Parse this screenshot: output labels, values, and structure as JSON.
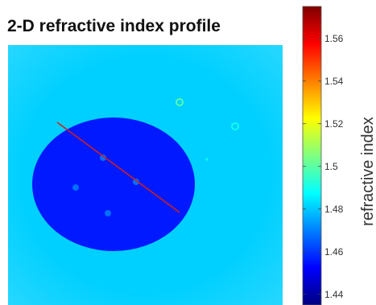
{
  "chart_data": {
    "type": "heatmap",
    "title": "2-D refractive index profile",
    "colorbar": {
      "label": "refractive index",
      "range": [
        1.435,
        1.575
      ],
      "ticks": [
        1.44,
        1.46,
        1.48,
        1.5,
        1.52,
        1.54,
        1.56
      ],
      "tick_labels": [
        "1.44",
        "1.46",
        "1.48",
        "1.5",
        "1.52",
        "1.54",
        "1.56"
      ],
      "colormap": "jet"
    },
    "background_value": 1.481,
    "regions": [
      {
        "shape": "disk",
        "value": 1.456
      },
      {
        "shape": "dot",
        "value": 1.47
      },
      {
        "shape": "dot",
        "value": 1.47
      },
      {
        "shape": "dot",
        "value": 1.47
      },
      {
        "shape": "dot",
        "value": 1.47
      },
      {
        "shape": "ring",
        "value": 1.5
      },
      {
        "shape": "ring",
        "value": 1.49
      },
      {
        "shape": "dot",
        "value": 1.49
      }
    ],
    "line_profile_color": "#cc2020",
    "axes_visible": false
  }
}
